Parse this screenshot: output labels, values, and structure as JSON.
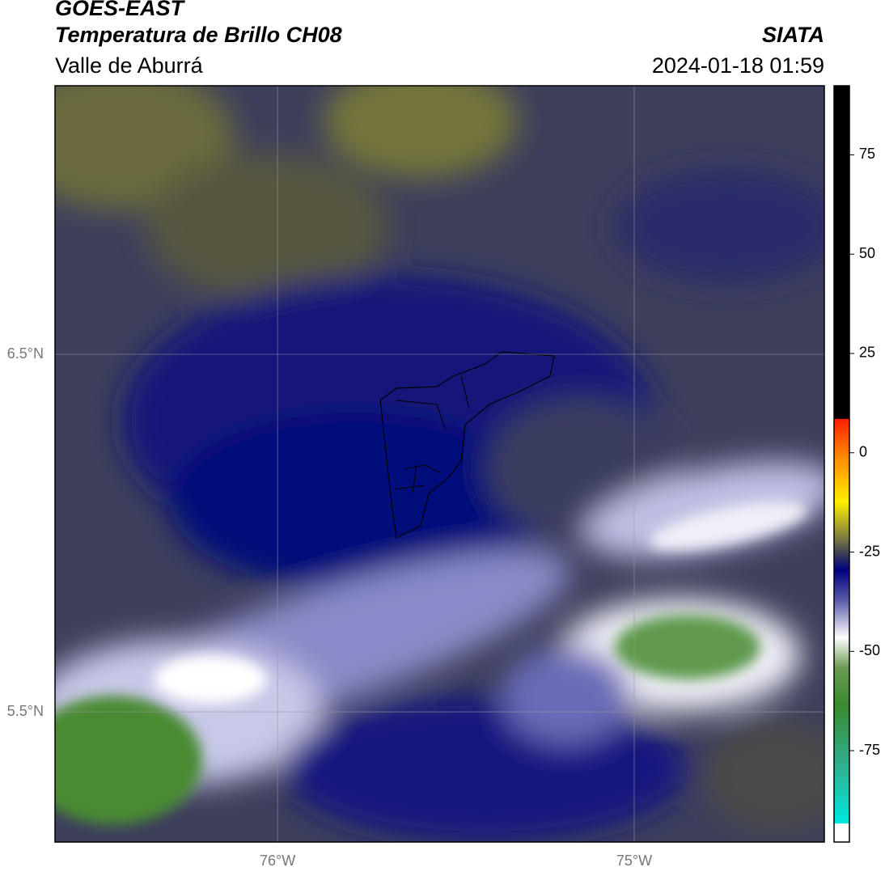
{
  "header": {
    "title": "GOES-EAST",
    "subtitle": "Temperatura de Brillo CH08",
    "region": "Valle de Aburrá",
    "organization": "SIATA",
    "datetime": "2024-01-18 01:59"
  },
  "map": {
    "xlim": [
      -76.624,
      -74.467
    ],
    "ylim": [
      5.136,
      7.251
    ],
    "xticks": [
      {
        "value": -76,
        "label": "76°W"
      },
      {
        "value": -75,
        "label": "75°W"
      }
    ],
    "yticks": [
      {
        "value": 6.5,
        "label": "6.5°N"
      },
      {
        "value": 5.5,
        "label": "5.5°N"
      }
    ],
    "grid": true
  },
  "colorbar": {
    "lim": [
      -98,
      92.4
    ],
    "ticks": [
      75,
      50,
      25,
      0,
      -25,
      -50,
      -75
    ]
  }
}
